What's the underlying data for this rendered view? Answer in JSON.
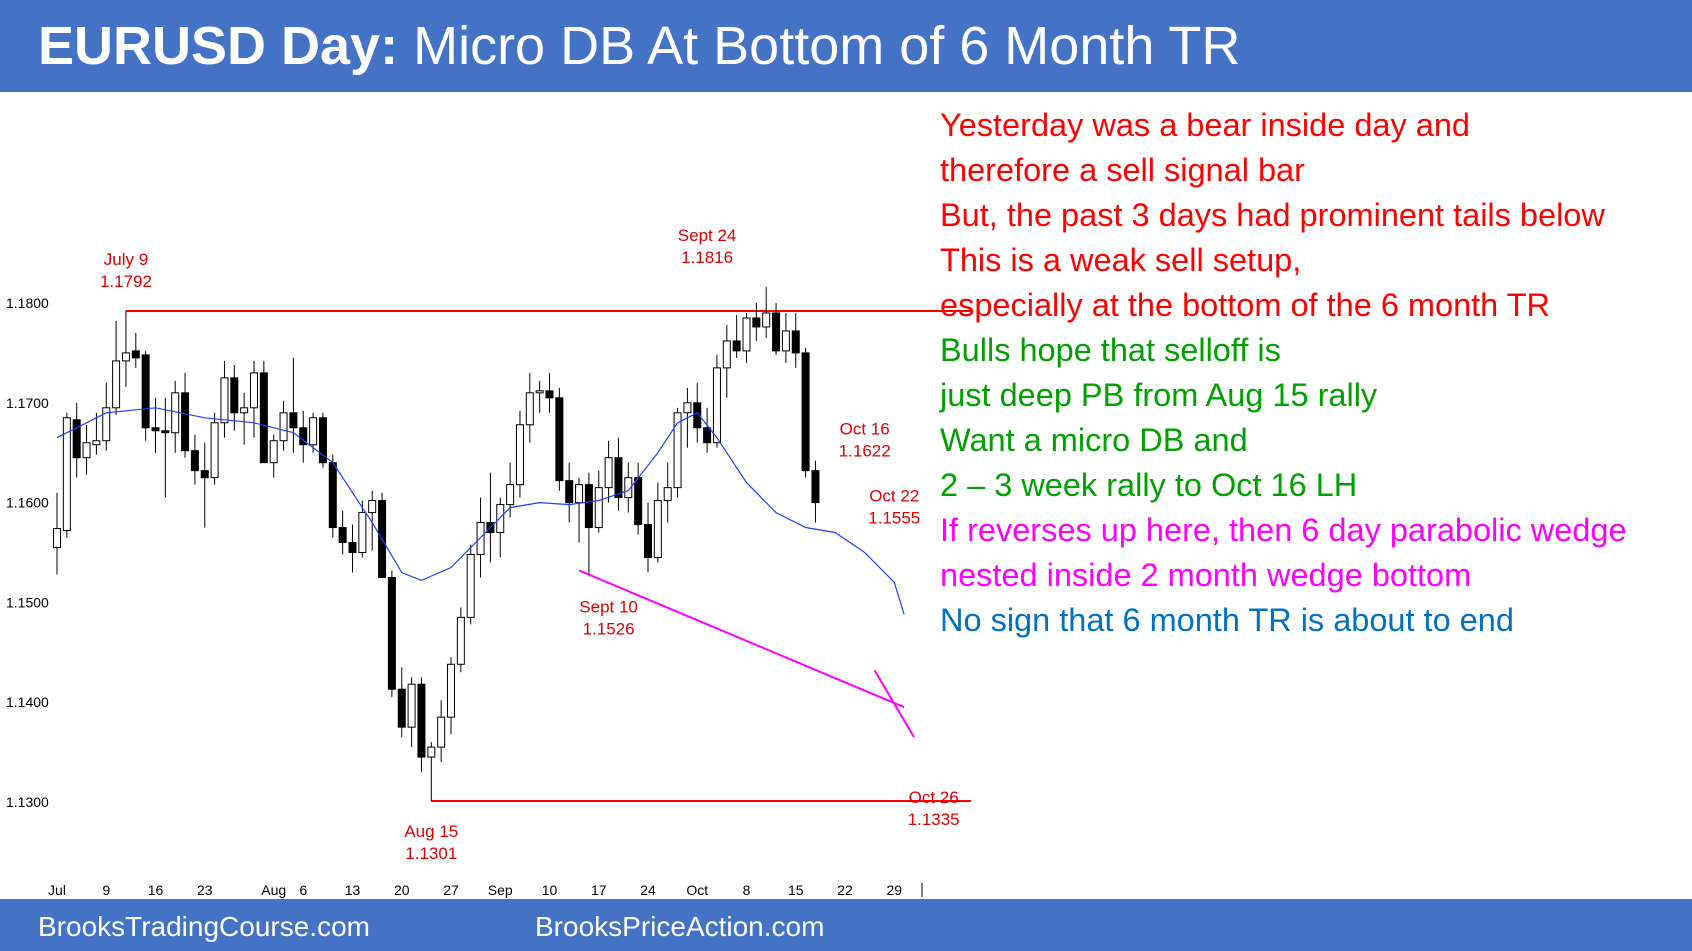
{
  "header": {
    "title_bold": "EURUSD Day:",
    "title_rest": "Micro DB At Bottom of 6 Month TR"
  },
  "commentary": [
    {
      "text": "Yesterday was a bear inside day and",
      "color": "#ff0000"
    },
    {
      "text": "therefore a sell signal bar",
      "color": "#ff0000"
    },
    {
      "text": "But, the past 3 days had prominent tails below",
      "color": "#ff0000"
    },
    {
      "text": "This is a weak sell setup,",
      "color": "#ff0000"
    },
    {
      "text": "especially at the bottom of the 6 month TR",
      "color": "#ff0000"
    },
    {
      "text": "Bulls hope that selloff is",
      "color": "#00a000"
    },
    {
      "text": "just deep PB from Aug 15 rally",
      "color": "#00a000"
    },
    {
      "text": "Want a micro DB and",
      "color": "#00a000"
    },
    {
      "text": "2 – 3 week rally to Oct 16 LH",
      "color": "#00a000"
    },
    {
      "text": "If reverses up here, then 6 day parabolic wedge",
      "color": "#ff00ff"
    },
    {
      "text": "nested inside 2 month wedge bottom",
      "color": "#ff00ff"
    },
    {
      "text": "No sign that 6 month TR is about to end",
      "color": "#0070c0"
    }
  ],
  "footer": {
    "left": "BrooksTradingCourse.com",
    "right": "BrooksPriceAction.com"
  },
  "colors": {
    "header_bg": "#4472c4",
    "bull_candle": "#ffffff",
    "bear_candle": "#000000",
    "moving_average": "#1f3fff",
    "range_lines": "#ff0000",
    "wedge_lines": "#ff00ff",
    "annotations": "#e00000"
  },
  "chart_data": {
    "type": "candlestick",
    "title": "",
    "xlabel": "",
    "ylabel": "",
    "ylim": [
      1.128,
      1.185
    ],
    "yticks": [
      "1.1800",
      "1.1700",
      "1.1600",
      "1.1500",
      "1.1400",
      "1.1300"
    ],
    "ytick_values": [
      1.18,
      1.17,
      1.16,
      1.15,
      1.14,
      1.13
    ],
    "xticks": [
      {
        "label": "Jul",
        "bar": 0
      },
      {
        "label": "9",
        "bar": 5
      },
      {
        "label": "16",
        "bar": 10
      },
      {
        "label": "23",
        "bar": 15
      },
      {
        "label": "Aug",
        "bar": 22
      },
      {
        "label": "6",
        "bar": 25
      },
      {
        "label": "13",
        "bar": 30
      },
      {
        "label": "20",
        "bar": 35
      },
      {
        "label": "27",
        "bar": 40
      },
      {
        "label": "Sep",
        "bar": 45
      },
      {
        "label": "10",
        "bar": 50
      },
      {
        "label": "17",
        "bar": 55
      },
      {
        "label": "24",
        "bar": 60
      },
      {
        "label": "Oct",
        "bar": 65
      },
      {
        "label": "8",
        "bar": 70
      },
      {
        "label": "15",
        "bar": 75
      },
      {
        "label": "22",
        "bar": 80
      },
      {
        "label": "29",
        "bar": 85
      }
    ],
    "candles": [
      {
        "o": 1.1555,
        "h": 1.161,
        "l": 1.1528,
        "c": 1.1574
      },
      {
        "o": 1.1572,
        "h": 1.169,
        "l": 1.1565,
        "c": 1.1685
      },
      {
        "o": 1.1683,
        "h": 1.17,
        "l": 1.1625,
        "c": 1.1645
      },
      {
        "o": 1.1645,
        "h": 1.1678,
        "l": 1.1628,
        "c": 1.166
      },
      {
        "o": 1.1658,
        "h": 1.169,
        "l": 1.1648,
        "c": 1.1662
      },
      {
        "o": 1.1662,
        "h": 1.172,
        "l": 1.1652,
        "c": 1.1695
      },
      {
        "o": 1.1695,
        "h": 1.1782,
        "l": 1.1688,
        "c": 1.1742
      },
      {
        "o": 1.1742,
        "h": 1.1792,
        "l": 1.1716,
        "c": 1.175
      },
      {
        "o": 1.1752,
        "h": 1.177,
        "l": 1.1735,
        "c": 1.1745
      },
      {
        "o": 1.1748,
        "h": 1.1752,
        "l": 1.1662,
        "c": 1.1675
      },
      {
        "o": 1.1675,
        "h": 1.1705,
        "l": 1.165,
        "c": 1.1672
      },
      {
        "o": 1.1672,
        "h": 1.1705,
        "l": 1.1605,
        "c": 1.167
      },
      {
        "o": 1.167,
        "h": 1.1722,
        "l": 1.165,
        "c": 1.171
      },
      {
        "o": 1.171,
        "h": 1.173,
        "l": 1.1645,
        "c": 1.1652
      },
      {
        "o": 1.1652,
        "h": 1.1668,
        "l": 1.1618,
        "c": 1.1632
      },
      {
        "o": 1.1632,
        "h": 1.166,
        "l": 1.1575,
        "c": 1.1625
      },
      {
        "o": 1.1625,
        "h": 1.169,
        "l": 1.1618,
        "c": 1.168
      },
      {
        "o": 1.168,
        "h": 1.1742,
        "l": 1.1665,
        "c": 1.1725
      },
      {
        "o": 1.1725,
        "h": 1.1738,
        "l": 1.1672,
        "c": 1.169
      },
      {
        "o": 1.169,
        "h": 1.171,
        "l": 1.1658,
        "c": 1.1695
      },
      {
        "o": 1.1695,
        "h": 1.1742,
        "l": 1.1665,
        "c": 1.173
      },
      {
        "o": 1.173,
        "h": 1.1742,
        "l": 1.164,
        "c": 1.164
      },
      {
        "o": 1.164,
        "h": 1.1668,
        "l": 1.1625,
        "c": 1.1662
      },
      {
        "o": 1.1662,
        "h": 1.1702,
        "l": 1.1652,
        "c": 1.169
      },
      {
        "o": 1.169,
        "h": 1.1745,
        "l": 1.165,
        "c": 1.1675
      },
      {
        "o": 1.1675,
        "h": 1.1692,
        "l": 1.164,
        "c": 1.1658
      },
      {
        "o": 1.1658,
        "h": 1.169,
        "l": 1.165,
        "c": 1.1685
      },
      {
        "o": 1.1685,
        "h": 1.169,
        "l": 1.1635,
        "c": 1.164
      },
      {
        "o": 1.164,
        "h": 1.1648,
        "l": 1.1565,
        "c": 1.1575
      },
      {
        "o": 1.1575,
        "h": 1.1592,
        "l": 1.1548,
        "c": 1.156
      },
      {
        "o": 1.156,
        "h": 1.1578,
        "l": 1.153,
        "c": 1.155
      },
      {
        "o": 1.155,
        "h": 1.1602,
        "l": 1.1545,
        "c": 1.159
      },
      {
        "o": 1.159,
        "h": 1.1612,
        "l": 1.1552,
        "c": 1.1602
      },
      {
        "o": 1.1602,
        "h": 1.161,
        "l": 1.1525,
        "c": 1.1525
      },
      {
        "o": 1.1525,
        "h": 1.1532,
        "l": 1.1405,
        "c": 1.1413
      },
      {
        "o": 1.1413,
        "h": 1.1435,
        "l": 1.1365,
        "c": 1.1375
      },
      {
        "o": 1.1375,
        "h": 1.1425,
        "l": 1.1355,
        "c": 1.1418
      },
      {
        "o": 1.1418,
        "h": 1.1425,
        "l": 1.133,
        "c": 1.1345
      },
      {
        "o": 1.1345,
        "h": 1.136,
        "l": 1.1301,
        "c": 1.1355
      },
      {
        "o": 1.1355,
        "h": 1.1402,
        "l": 1.134,
        "c": 1.1385
      },
      {
        "o": 1.1385,
        "h": 1.1445,
        "l": 1.1368,
        "c": 1.1438
      },
      {
        "o": 1.1438,
        "h": 1.1495,
        "l": 1.143,
        "c": 1.1485
      },
      {
        "o": 1.1485,
        "h": 1.1558,
        "l": 1.1478,
        "c": 1.1548
      },
      {
        "o": 1.1548,
        "h": 1.1605,
        "l": 1.1525,
        "c": 1.158
      },
      {
        "o": 1.158,
        "h": 1.163,
        "l": 1.154,
        "c": 1.157
      },
      {
        "o": 1.157,
        "h": 1.1605,
        "l": 1.1545,
        "c": 1.1598
      },
      {
        "o": 1.1598,
        "h": 1.164,
        "l": 1.1585,
        "c": 1.1618
      },
      {
        "o": 1.1618,
        "h": 1.1692,
        "l": 1.1605,
        "c": 1.1678
      },
      {
        "o": 1.1678,
        "h": 1.173,
        "l": 1.166,
        "c": 1.171
      },
      {
        "o": 1.171,
        "h": 1.1722,
        "l": 1.169,
        "c": 1.1712
      },
      {
        "o": 1.1712,
        "h": 1.173,
        "l": 1.169,
        "c": 1.1705
      },
      {
        "o": 1.1705,
        "h": 1.1715,
        "l": 1.1612,
        "c": 1.1622
      },
      {
        "o": 1.1622,
        "h": 1.164,
        "l": 1.158,
        "c": 1.16
      },
      {
        "o": 1.16,
        "h": 1.1625,
        "l": 1.156,
        "c": 1.1618
      },
      {
        "o": 1.1618,
        "h": 1.163,
        "l": 1.1526,
        "c": 1.1575
      },
      {
        "o": 1.1575,
        "h": 1.1632,
        "l": 1.157,
        "c": 1.1615
      },
      {
        "o": 1.1615,
        "h": 1.1662,
        "l": 1.16,
        "c": 1.1645
      },
      {
        "o": 1.1645,
        "h": 1.1665,
        "l": 1.1592,
        "c": 1.1605
      },
      {
        "o": 1.1605,
        "h": 1.164,
        "l": 1.159,
        "c": 1.1625
      },
      {
        "o": 1.1625,
        "h": 1.164,
        "l": 1.1568,
        "c": 1.1578
      },
      {
        "o": 1.1578,
        "h": 1.16,
        "l": 1.153,
        "c": 1.1545
      },
      {
        "o": 1.1545,
        "h": 1.162,
        "l": 1.154,
        "c": 1.1602
      },
      {
        "o": 1.1602,
        "h": 1.164,
        "l": 1.158,
        "c": 1.1615
      },
      {
        "o": 1.1615,
        "h": 1.1695,
        "l": 1.1605,
        "c": 1.169
      },
      {
        "o": 1.169,
        "h": 1.1715,
        "l": 1.1655,
        "c": 1.17
      },
      {
        "o": 1.17,
        "h": 1.172,
        "l": 1.166,
        "c": 1.1675
      },
      {
        "o": 1.1675,
        "h": 1.1695,
        "l": 1.165,
        "c": 1.166
      },
      {
        "o": 1.166,
        "h": 1.1748,
        "l": 1.1655,
        "c": 1.1735
      },
      {
        "o": 1.1735,
        "h": 1.1778,
        "l": 1.1705,
        "c": 1.1762
      },
      {
        "o": 1.1762,
        "h": 1.1788,
        "l": 1.1745,
        "c": 1.1752
      },
      {
        "o": 1.1752,
        "h": 1.179,
        "l": 1.174,
        "c": 1.1785
      },
      {
        "o": 1.1785,
        "h": 1.18,
        "l": 1.1762,
        "c": 1.1776
      },
      {
        "o": 1.1776,
        "h": 1.1816,
        "l": 1.1765,
        "c": 1.179
      },
      {
        "o": 1.179,
        "h": 1.18,
        "l": 1.1748,
        "c": 1.1752
      },
      {
        "o": 1.1752,
        "h": 1.179,
        "l": 1.174,
        "c": 1.1772
      },
      {
        "o": 1.1772,
        "h": 1.179,
        "l": 1.1735,
        "c": 1.175
      },
      {
        "o": 1.175,
        "h": 1.1755,
        "l": 1.1625,
        "c": 1.1632
      },
      {
        "o": 1.1632,
        "h": 1.1642,
        "l": 1.158,
        "c": 1.16
      }
    ],
    "moving_average": {
      "period": 20,
      "points": [
        [
          0,
          1.1665
        ],
        [
          5,
          1.169
        ],
        [
          10,
          1.1695
        ],
        [
          15,
          1.1685
        ],
        [
          20,
          1.168
        ],
        [
          24,
          1.167
        ],
        [
          28,
          1.164
        ],
        [
          32,
          1.158
        ],
        [
          35,
          1.153
        ],
        [
          37,
          1.1522
        ],
        [
          40,
          1.1535
        ],
        [
          43,
          1.1565
        ],
        [
          46,
          1.1595
        ],
        [
          49,
          1.16
        ],
        [
          52,
          1.1598
        ],
        [
          55,
          1.1602
        ],
        [
          58,
          1.1612
        ],
        [
          61,
          1.165
        ],
        [
          63,
          1.168
        ],
        [
          65,
          1.169
        ],
        [
          67,
          1.1665
        ],
        [
          70,
          1.162
        ],
        [
          73,
          1.159
        ],
        [
          76,
          1.1575
        ],
        [
          79,
          1.157
        ],
        [
          82,
          1.155
        ],
        [
          85,
          1.152
        ],
        [
          86,
          1.1488
        ]
      ]
    },
    "range_lines": [
      {
        "price": 1.1792,
        "from_bar": 7,
        "to_bar": 92
      },
      {
        "price": 1.1301,
        "from_bar": 38,
        "to_bar": 92
      }
    ],
    "wedge_lines": [
      {
        "from": [
          53,
          1.1532
        ],
        "to": [
          86,
          1.1395
        ]
      },
      {
        "from": [
          83,
          1.1432
        ],
        "to": [
          87,
          1.1365
        ]
      }
    ],
    "annotations": [
      {
        "date": "July 9",
        "price_label": "1.1792",
        "bar": 7,
        "price": 1.1792,
        "position": "above"
      },
      {
        "date": "Sept 24",
        "price_label": "1.1816",
        "bar": 66,
        "price": 1.1816,
        "position": "above"
      },
      {
        "date": "Oct 16",
        "price_label": "1.1622",
        "bar": 82,
        "price": 1.1622,
        "position": "above"
      },
      {
        "date": "Oct 22",
        "price_label": "1.1555",
        "bar": 85,
        "price": 1.1555,
        "position": "above"
      },
      {
        "date": "Sept 10",
        "price_label": "1.1526",
        "bar": 56,
        "price": 1.1526,
        "position": "below"
      },
      {
        "date": "Aug 15",
        "price_label": "1.1301",
        "bar": 38,
        "price": 1.1301,
        "position": "below"
      },
      {
        "date": "Oct 26",
        "price_label": "1.1335",
        "bar": 89,
        "price": 1.1335,
        "position": "below"
      }
    ]
  }
}
